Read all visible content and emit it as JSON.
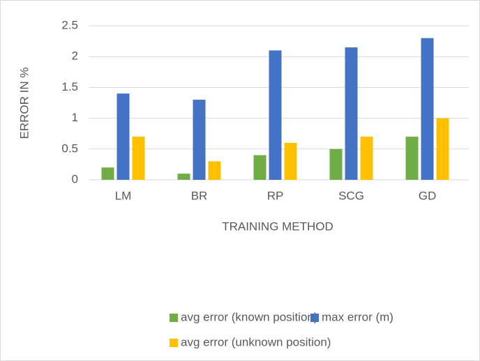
{
  "chart_data": {
    "type": "bar",
    "categories": [
      "LM",
      "BR",
      "RP",
      "SCG",
      "GD"
    ],
    "series": [
      {
        "name": "avg error (known position)",
        "color": "#70ad47",
        "values": [
          0.2,
          0.1,
          0.4,
          0.5,
          0.7
        ]
      },
      {
        "name": "max error (m)",
        "color": "#4472c4",
        "values": [
          1.4,
          1.3,
          2.1,
          2.15,
          2.3
        ]
      },
      {
        "name": "avg error (unknown position)",
        "color": "#ffc000",
        "values": [
          0.7,
          0.3,
          0.6,
          0.7,
          1.0
        ]
      }
    ],
    "xlabel": "TRAINING METHOD",
    "ylabel": "ERROR IN %",
    "ylim": [
      0,
      2.5
    ],
    "yticks": [
      0,
      0.5,
      1,
      1.5,
      2,
      2.5
    ],
    "grid": true,
    "legend": "bottom"
  }
}
